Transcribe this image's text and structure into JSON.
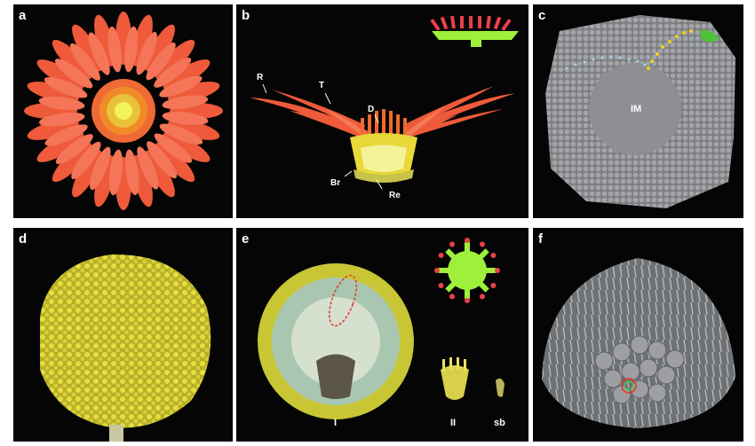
{
  "panels": {
    "a": {
      "label": "a"
    },
    "b": {
      "label": "b",
      "annotations": {
        "R": "R",
        "T": "T",
        "D": "D",
        "Br": "Br",
        "Re": "Re"
      }
    },
    "c": {
      "label": "c",
      "annotations": {
        "IM": "IM"
      }
    },
    "d": {
      "label": "d"
    },
    "e": {
      "label": "e",
      "annotations": {
        "I": "I",
        "II": "II",
        "sb": "sb"
      }
    },
    "f": {
      "label": "f"
    }
  },
  "colors": {
    "panel_background": "#050505",
    "ray_floret": "#f2603f",
    "disc_yellow": "#e6df3c",
    "receptacle_green": "#a6f23a",
    "dotted_highlight": "#f0d020",
    "cyan_dots": "#8fd6e8",
    "red_outline": "#e8322a",
    "sem_grey": "#8a8c8f"
  },
  "icons": [
    "flower-photo",
    "flower-cross-section",
    "sem-inflorescence-meristem",
    "yellow-capitulum",
    "receptacle-schematic",
    "sem-floret-primordia"
  ]
}
